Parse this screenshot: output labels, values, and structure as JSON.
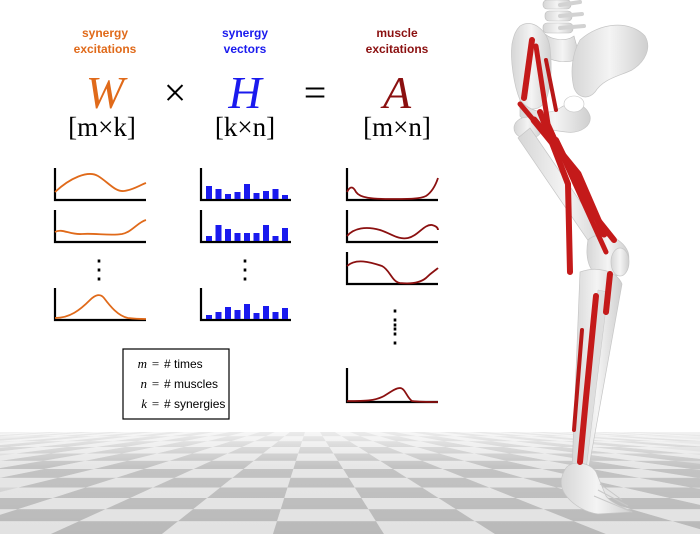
{
  "colors": {
    "synergy_excitations": "#e06a1a",
    "synergy_vectors": "#1a1aee",
    "muscle_excitations": "#8b1010",
    "bone": "#ececec",
    "muscle": "#c41a1a"
  },
  "columns": {
    "W": {
      "header_line1": "synergy",
      "header_line2": "excitations",
      "symbol": "W",
      "dims": "[m×k]"
    },
    "H": {
      "header_line1": "synergy",
      "header_line2": "vectors",
      "symbol": "H",
      "dims": "[k×n]"
    },
    "A": {
      "header_line1": "muscle",
      "header_line2": "excitations",
      "symbol": "A",
      "dims": "[m×n]"
    }
  },
  "operators": {
    "times": "×",
    "equals": "="
  },
  "legend": [
    {
      "var": "m",
      "eq": "=",
      "desc": "# times"
    },
    {
      "var": "n",
      "eq": "=",
      "desc": "# muscles"
    },
    {
      "var": "k",
      "eq": "=",
      "desc": "# synergies"
    }
  ],
  "ellipsis": "⋮",
  "icons": {
    "background": "checkerboard-floor",
    "figure": "leg-skeleton-muscle-model"
  }
}
